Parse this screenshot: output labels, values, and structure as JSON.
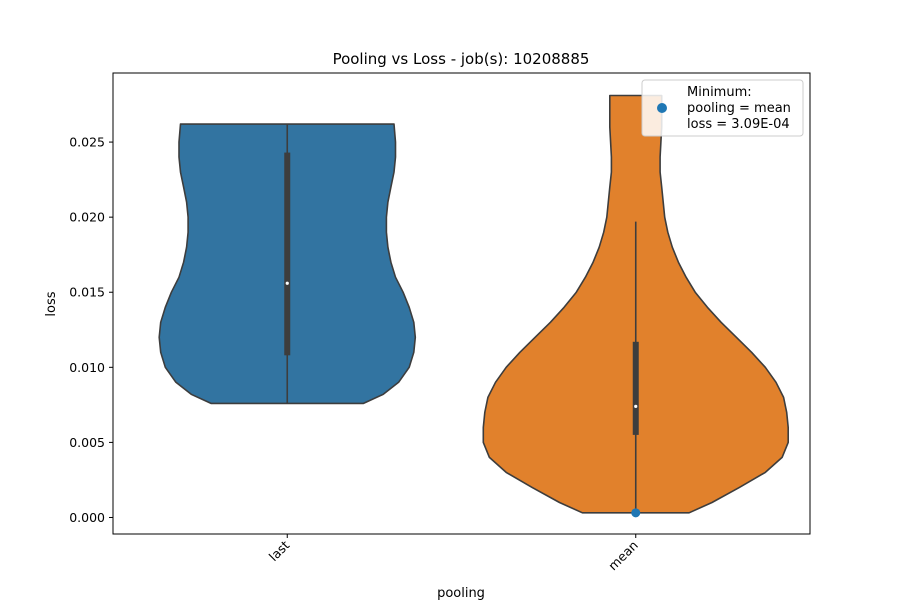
{
  "chart_data": {
    "type": "violin",
    "title": "Pooling vs Loss - job(s): 10208885",
    "xlabel": "pooling",
    "ylabel": "loss",
    "categories": [
      "last",
      "mean"
    ],
    "ylim": [
      -0.0011,
      0.0296
    ],
    "yticks": [
      0.0,
      0.005,
      0.01,
      0.015,
      0.02,
      0.025
    ],
    "ytick_labels": [
      "0.000",
      "0.005",
      "0.010",
      "0.015",
      "0.020",
      "0.025"
    ],
    "grid": false,
    "violins": [
      {
        "category": "last",
        "color": "#3274a1",
        "min": 0.0076,
        "max": 0.0262,
        "q1": 0.0108,
        "median": 0.0156,
        "q3": 0.0243,
        "whisker_low": 0.0076,
        "whisker_high": 0.0262,
        "profile_y": [
          0.0076,
          0.0082,
          0.009,
          0.01,
          0.011,
          0.012,
          0.013,
          0.014,
          0.015,
          0.016,
          0.017,
          0.018,
          0.019,
          0.02,
          0.021,
          0.022,
          0.023,
          0.024,
          0.025,
          0.0262
        ],
        "profile_halfwidth": [
          0.5,
          0.63,
          0.73,
          0.8,
          0.83,
          0.84,
          0.83,
          0.8,
          0.76,
          0.71,
          0.68,
          0.66,
          0.65,
          0.65,
          0.66,
          0.68,
          0.7,
          0.71,
          0.71,
          0.7
        ]
      },
      {
        "category": "mean",
        "color": "#e1812c",
        "min": 0.00031,
        "max": 0.0281,
        "q1": 0.0055,
        "median": 0.0074,
        "q3": 0.0117,
        "whisker_low": 0.00031,
        "whisker_high": 0.0197,
        "profile_y": [
          0.00031,
          0.001,
          0.002,
          0.003,
          0.004,
          0.005,
          0.006,
          0.007,
          0.008,
          0.009,
          0.01,
          0.011,
          0.012,
          0.013,
          0.014,
          0.015,
          0.016,
          0.017,
          0.018,
          0.019,
          0.02,
          0.021,
          0.022,
          0.023,
          0.024,
          0.025,
          0.026,
          0.027,
          0.0281
        ],
        "profile_halfwidth": [
          0.35,
          0.5,
          0.68,
          0.85,
          0.96,
          1.0,
          1.0,
          0.99,
          0.97,
          0.92,
          0.85,
          0.76,
          0.66,
          0.56,
          0.47,
          0.39,
          0.33,
          0.28,
          0.24,
          0.21,
          0.19,
          0.18,
          0.17,
          0.16,
          0.16,
          0.165,
          0.17,
          0.17,
          0.17
        ]
      }
    ],
    "highlight_point": {
      "category": "mean",
      "value": 0.000309,
      "color": "#1f77b4"
    },
    "legend": {
      "placement": "top-right",
      "lines": [
        "Minimum:",
        "pooling = mean",
        "loss = 3.09E-04"
      ]
    }
  }
}
